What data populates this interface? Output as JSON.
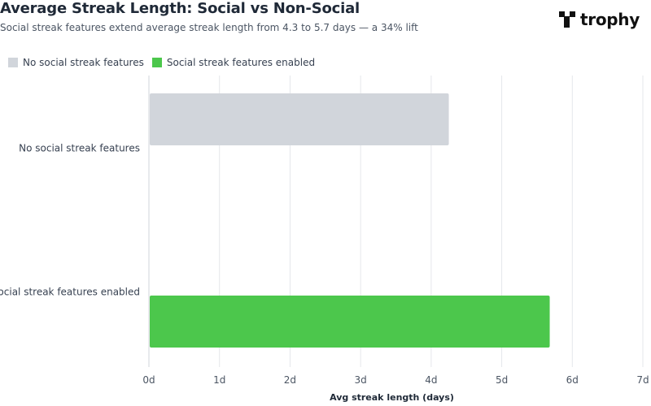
{
  "header": {
    "title": "Average Streak Length: Social vs Non-Social",
    "subtitle": "Social streak features extend average streak length from 4.3 to 5.7 days — a 34% lift"
  },
  "brand": {
    "name": "trophy",
    "icon": "trophy-logo-icon"
  },
  "colors": {
    "non_social": "#d1d5db",
    "social": "#4cc74c",
    "grid": "#e5e7eb",
    "axis_text": "#4b5563"
  },
  "chart_data": {
    "type": "bar",
    "orientation": "horizontal",
    "categories": [
      "No social streak features",
      "Social streak features enabled"
    ],
    "values": [
      4.25,
      5.68
    ],
    "xlabel": "Avg streak length (days)",
    "ylabel": "",
    "xlim": [
      0,
      7
    ],
    "x_ticks": [
      "0d",
      "1d",
      "2d",
      "3d",
      "4d",
      "5d",
      "6d",
      "7d"
    ],
    "grid": "vertical",
    "legend": [
      {
        "label": "No social streak features",
        "color": "#d1d5db"
      },
      {
        "label": "Social streak features enabled",
        "color": "#4cc74c"
      }
    ],
    "legend_position": "top-left"
  }
}
